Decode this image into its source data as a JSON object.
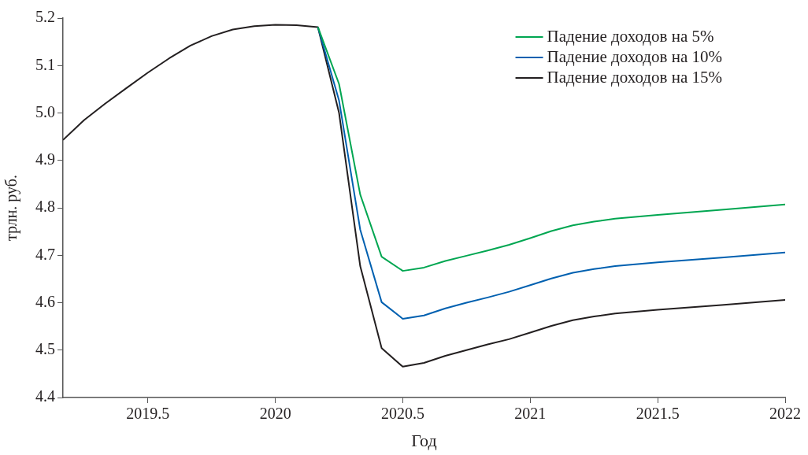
{
  "chart_data": {
    "type": "line",
    "xlabel": "Год",
    "ylabel": "трлн. руб.",
    "x": [
      2019.167,
      2019.25,
      2019.333,
      2019.417,
      2019.5,
      2019.583,
      2019.667,
      2019.75,
      2019.833,
      2019.917,
      2020,
      2020.083,
      2020.167,
      2020.25,
      2020.333,
      2020.417,
      2020.5,
      2020.583,
      2020.667,
      2020.75,
      2020.833,
      2020.917,
      2021,
      2021.083,
      2021.167,
      2021.25,
      2021.333,
      2021.5,
      2021.75,
      2022
    ],
    "series": [
      {
        "name": "Падение доходов на 5%",
        "color": "#00a651",
        "values": [
          null,
          null,
          null,
          null,
          null,
          null,
          null,
          null,
          null,
          null,
          null,
          null,
          5.181,
          5.061,
          4.828,
          4.697,
          4.667,
          4.674,
          4.688,
          4.699,
          4.71,
          4.722,
          4.736,
          4.751,
          4.763,
          4.771,
          4.777,
          4.785,
          4.796,
          4.807
        ]
      },
      {
        "name": "Падение доходов на 10%",
        "color": "#0060b0",
        "values": [
          null,
          null,
          null,
          null,
          null,
          null,
          null,
          null,
          null,
          null,
          null,
          null,
          5.181,
          5.026,
          4.754,
          4.601,
          4.566,
          4.573,
          4.588,
          4.6,
          4.611,
          4.623,
          4.637,
          4.651,
          4.663,
          4.671,
          4.677,
          4.685,
          4.695,
          4.706
        ]
      },
      {
        "name": "Падение доходов на 15%",
        "color": "#231f20",
        "values": [
          4.943,
          4.985,
          5.02,
          5.053,
          5.085,
          5.115,
          5.142,
          5.162,
          5.176,
          5.183,
          5.186,
          5.185,
          5.181,
          5.0,
          4.677,
          4.504,
          4.465,
          4.473,
          4.488,
          4.5,
          4.512,
          4.523,
          4.537,
          4.551,
          4.563,
          4.571,
          4.577,
          4.585,
          4.595,
          4.606
        ]
      }
    ],
    "xlim": [
      2019.167,
      2022
    ],
    "xticks": [
      2019.5,
      2020,
      2020.5,
      2021,
      2021.5,
      2022
    ],
    "ylim": [
      4.4,
      5.2
    ],
    "yticks": [
      4.4,
      4.5,
      4.6,
      4.7,
      4.8,
      4.9,
      {
        "value": 5,
        "label": "5.0"
      },
      5.1,
      5.2
    ],
    "grid": false,
    "legend": "top right",
    "marker": "none",
    "line_style": "solid"
  }
}
